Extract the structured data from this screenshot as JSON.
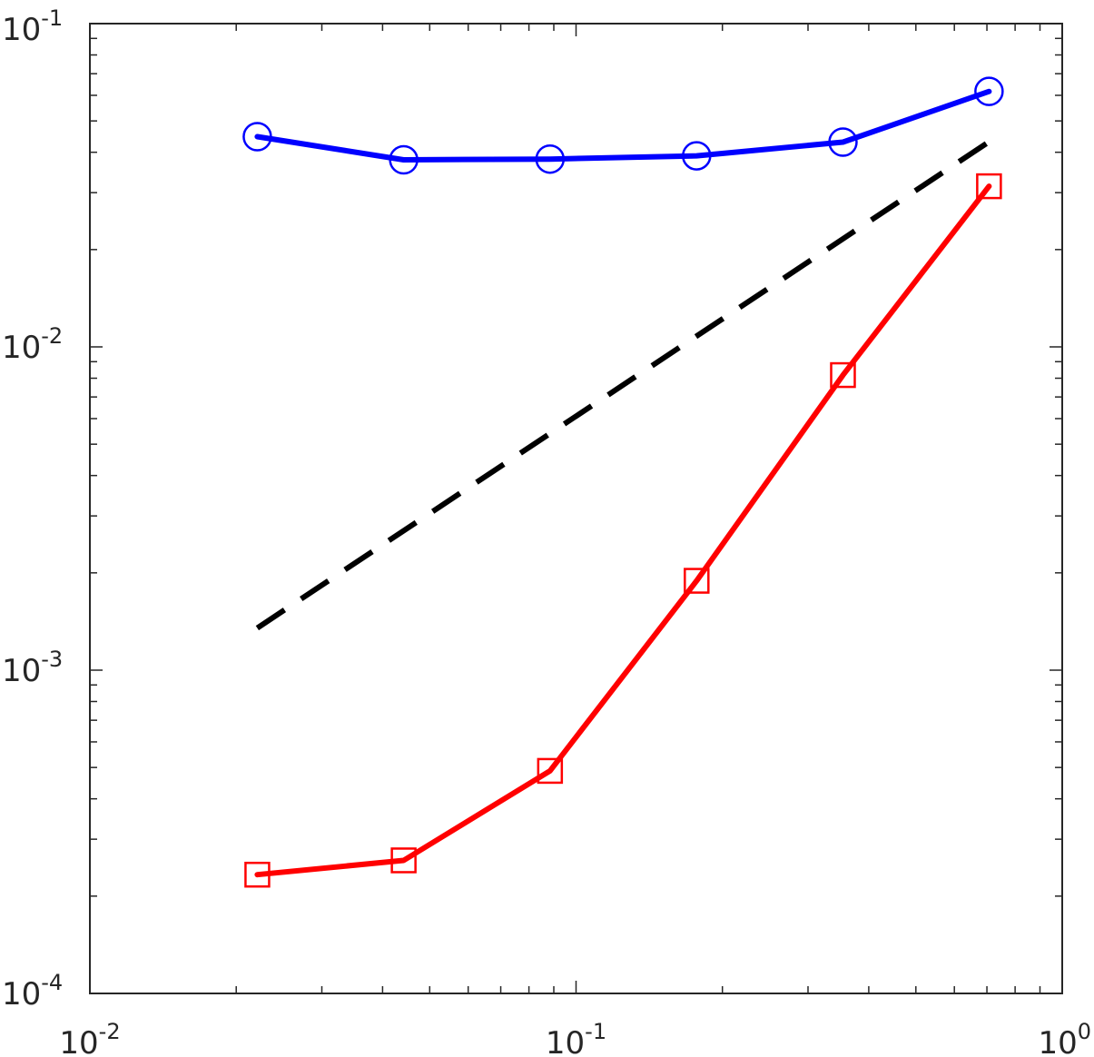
{
  "chart_data": {
    "type": "line",
    "title": "",
    "xlabel": "",
    "ylabel": "",
    "xscale": "log",
    "yscale": "log",
    "xlim": [
      0.01,
      1
    ],
    "ylim": [
      0.0001,
      0.1
    ],
    "grid": false,
    "x_ticks": [
      {
        "value": 0.01,
        "base": "10",
        "exp": "-2"
      },
      {
        "value": 0.1,
        "base": "10",
        "exp": "-1"
      },
      {
        "value": 1,
        "base": "10",
        "exp": "0"
      }
    ],
    "y_ticks": [
      {
        "value": 0.0001,
        "base": "10",
        "exp": "-4"
      },
      {
        "value": 0.001,
        "base": "10",
        "exp": "-3"
      },
      {
        "value": 0.01,
        "base": "10",
        "exp": "-2"
      },
      {
        "value": 0.1,
        "base": "10",
        "exp": "-1"
      }
    ],
    "series": [
      {
        "color": "#0000ff",
        "marker": "circle",
        "line_style": "solid",
        "x": [
          0.0221,
          0.0442,
          0.0884,
          0.177,
          0.354,
          0.707
        ],
        "y": [
          0.0447,
          0.0379,
          0.0381,
          0.039,
          0.043,
          0.0617
        ]
      },
      {
        "color": "#000000",
        "marker": "none",
        "line_style": "dashed",
        "x": [
          0.0221,
          0.707
        ],
        "y": [
          0.00135,
          0.0431
        ]
      },
      {
        "color": "#ff0000",
        "marker": "square",
        "line_style": "solid",
        "x": [
          0.0221,
          0.0442,
          0.0884,
          0.177,
          0.354,
          0.707
        ],
        "y": [
          0.000233,
          0.000258,
          0.000488,
          0.00189,
          0.00818,
          0.0314
        ]
      }
    ]
  }
}
